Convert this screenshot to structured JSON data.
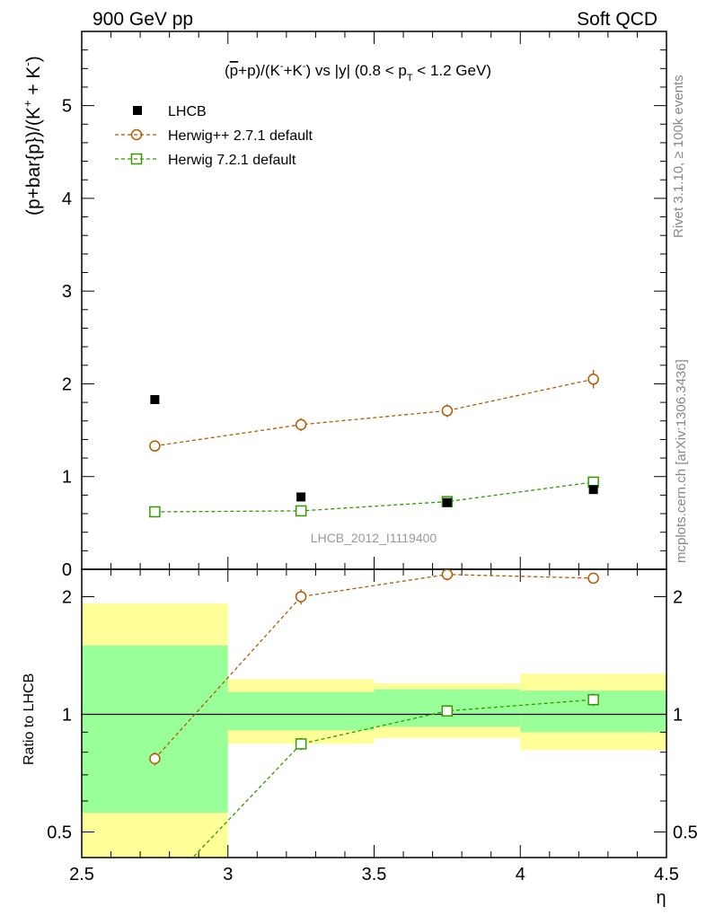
{
  "header": {
    "left": "900 GeV pp",
    "right": "Soft QCD"
  },
  "side_labels": {
    "rivet": "Rivet 3.1.10, ≥ 100k events",
    "mcplots": "mcplots.cern.ch [arXiv:1306.3436]"
  },
  "watermark": "LHCB_2012_I1119400",
  "colors": {
    "data": "#000000",
    "herwigpp": "#b35900",
    "herwig7": "#339900",
    "band_outer": "#ffff99",
    "band_inner": "#99ff99"
  },
  "chart_data": [
    {
      "type": "scatter",
      "title": "(p̅+p)/(K⁻+K⁻) vs |y| (0.8 < p_T < 1.2 GeV)",
      "ylabel": "(p+bar{p})/(K⁺ + K⁻)",
      "xlim": [
        2.5,
        4.5
      ],
      "ylim": [
        0,
        5.8
      ],
      "yticks": [
        "0",
        "1",
        "2",
        "3",
        "4",
        "5"
      ],
      "legend_position": "top-left",
      "legend": [
        "LHCB",
        "Herwig++ 2.7.1 default",
        "Herwig 7.2.1 default"
      ],
      "series": [
        {
          "name": "LHCB",
          "x": [
            2.75,
            3.25,
            3.75,
            4.25
          ],
          "y": [
            1.83,
            0.78,
            0.72,
            0.86
          ]
        },
        {
          "name": "Herwig++ 2.7.1 default",
          "x": [
            2.75,
            3.25,
            3.75,
            4.25
          ],
          "y": [
            1.33,
            1.56,
            1.71,
            2.05
          ],
          "err": [
            0.05,
            0.07,
            0.07,
            0.1
          ]
        },
        {
          "name": "Herwig 7.2.1 default",
          "x": [
            2.75,
            3.25,
            3.75,
            4.25
          ],
          "y": [
            0.62,
            0.63,
            0.73,
            0.94
          ],
          "err": [
            0.02,
            0.02,
            0.03,
            0.03
          ]
        }
      ]
    },
    {
      "type": "scatter",
      "ylabel": "Ratio to LHCB",
      "xlabel": "η",
      "xlim": [
        2.5,
        4.5
      ],
      "xticks": [
        "2.5",
        "3",
        "3.5",
        "4",
        "4.5"
      ],
      "ylim": [
        0.43,
        2.35
      ],
      "yticks": [
        "0.5",
        "1",
        "2"
      ],
      "bands": [
        {
          "x": [
            2.5,
            3.0
          ],
          "outer": [
            0.3,
            1.92
          ],
          "inner": [
            0.56,
            1.5
          ]
        },
        {
          "x": [
            3.0,
            3.5
          ],
          "outer": [
            0.84,
            1.23
          ],
          "inner": [
            0.91,
            1.14
          ]
        },
        {
          "x": [
            3.5,
            4.0
          ],
          "outer": [
            0.87,
            1.2
          ],
          "inner": [
            0.93,
            1.16
          ]
        },
        {
          "x": [
            4.0,
            4.5
          ],
          "outer": [
            0.81,
            1.27
          ],
          "inner": [
            0.9,
            1.15
          ]
        }
      ],
      "series": [
        {
          "name": "Herwig++ 2.7.1 default",
          "x": [
            2.75,
            3.25,
            3.75,
            4.25
          ],
          "y": [
            0.77,
            2.0,
            2.28,
            2.23
          ],
          "err": [
            0.03,
            0.09,
            0.08,
            0.07
          ]
        },
        {
          "name": "Herwig 7.2.1 default",
          "x": [
            2.75,
            3.25,
            3.75,
            4.25
          ],
          "y": [
            0.34,
            0.84,
            1.02,
            1.09
          ],
          "err": [
            0.01,
            0.03,
            0.03,
            0.04
          ]
        }
      ]
    }
  ]
}
